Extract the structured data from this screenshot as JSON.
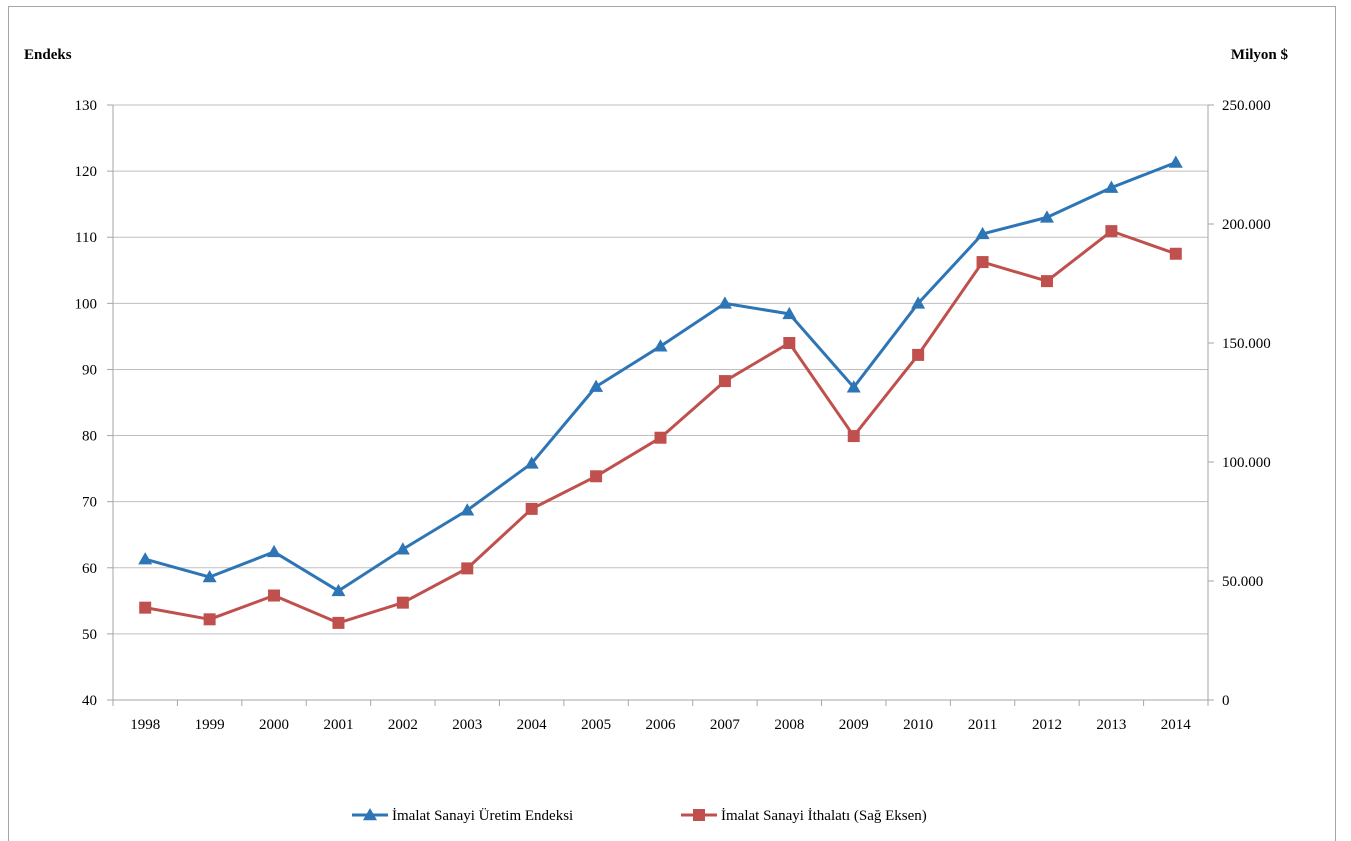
{
  "chart_data": {
    "type": "line",
    "title": "",
    "left_axis": {
      "label": "Endeks",
      "min": 40,
      "max": 130,
      "step": 10
    },
    "right_axis": {
      "label": "Milyon $",
      "min": 0,
      "max": 250000,
      "step": 50000
    },
    "categories": [
      "1998",
      "1999",
      "2000",
      "2001",
      "2002",
      "2003",
      "2004",
      "2005",
      "2006",
      "2007",
      "2008",
      "2009",
      "2010",
      "2011",
      "2012",
      "2013",
      "2014"
    ],
    "series": [
      {
        "name": "İmalat Sanayi Üretim Endeksi",
        "axis": "left",
        "color": "#2e75b6",
        "marker": "triangle",
        "values": [
          61.3,
          58.6,
          62.4,
          56.5,
          62.8,
          68.7,
          75.8,
          87.4,
          93.5,
          100.0,
          98.4,
          87.3,
          100.0,
          110.5,
          113.0,
          117.5,
          121.3
        ]
      },
      {
        "name": "İmalat Sanayi İthalatı (Sağ Eksen)",
        "axis": "right",
        "color": "#c0504d",
        "marker": "square",
        "values": [
          38800,
          33900,
          43900,
          32400,
          40900,
          55300,
          80300,
          94000,
          110200,
          134000,
          150000,
          110900,
          145000,
          184000,
          176000,
          197000,
          187500
        ]
      }
    ],
    "grid": true,
    "legend_position": "bottom"
  }
}
